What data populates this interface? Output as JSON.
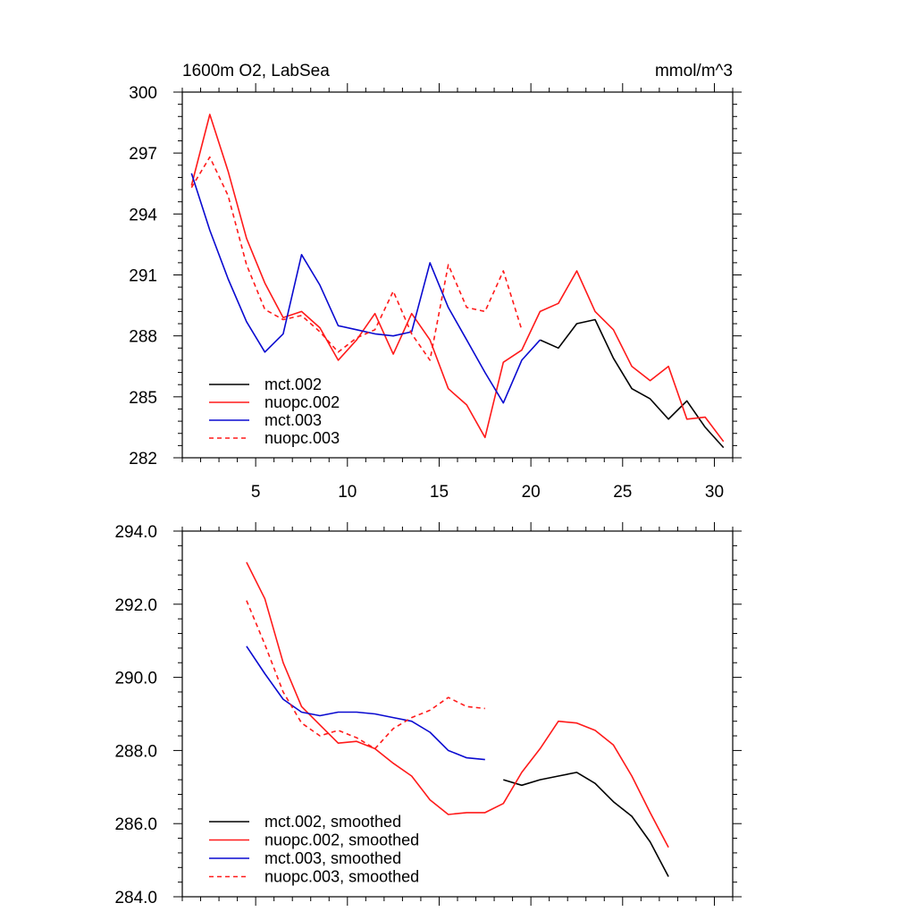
{
  "colors": {
    "black": "#000000",
    "red": "#ff1a1a",
    "blue": "#0a0ad0"
  },
  "chart_data": [
    {
      "type": "line",
      "title": "1600m O2, LabSea",
      "units": "mmol/m^3",
      "xlim": [
        1,
        31
      ],
      "ylim": [
        282,
        300
      ],
      "xticks": [
        5,
        10,
        15,
        20,
        25,
        30
      ],
      "yticks": [
        282,
        285,
        288,
        291,
        294,
        297,
        300
      ],
      "ytick_labels": [
        "282",
        "285",
        "288",
        "291",
        "294",
        "297",
        "300"
      ],
      "show_x_labels": true,
      "legend": "bottom-left",
      "series": [
        {
          "name": "mct.002",
          "color": "#000000",
          "dash": false,
          "x": [
            20.5,
            21.5,
            22.5,
            23.5,
            24.5,
            25.5,
            26.5,
            27.5,
            28.5,
            29.5,
            30.5
          ],
          "y": [
            287.8,
            287.4,
            288.6,
            288.8,
            286.9,
            285.4,
            284.9,
            283.9,
            284.8,
            283.5,
            282.5
          ]
        },
        {
          "name": "nuopc.002",
          "color": "#ff1a1a",
          "dash": false,
          "x": [
            1.5,
            2.5,
            3.5,
            4.5,
            5.5,
            6.5,
            7.5,
            8.5,
            9.5,
            10.5,
            11.5,
            12.5,
            13.5,
            14.5,
            15.5,
            16.5,
            17.5,
            18.5,
            19.5,
            20.5,
            21.5,
            22.5,
            23.5,
            24.5,
            25.5,
            26.5,
            27.5,
            28.5,
            29.5,
            30.5
          ],
          "y": [
            295.4,
            298.9,
            296.1,
            292.8,
            290.6,
            288.9,
            289.2,
            288.4,
            286.8,
            287.8,
            289.1,
            287.1,
            289.1,
            287.8,
            285.4,
            284.6,
            283.0,
            286.7,
            287.3,
            289.2,
            289.6,
            291.2,
            289.2,
            288.3,
            286.5,
            285.8,
            286.5,
            283.9,
            284.0,
            282.8
          ]
        },
        {
          "name": "mct.003",
          "color": "#0a0ad0",
          "dash": false,
          "x": [
            1.5,
            2.5,
            3.5,
            4.5,
            5.5,
            6.5,
            7.5,
            8.5,
            9.5,
            10.5,
            11.5,
            12.5,
            13.5,
            14.5,
            15.5,
            16.5,
            17.5,
            18.5,
            19.5,
            20.5
          ],
          "y": [
            296.0,
            293.2,
            290.8,
            288.7,
            287.2,
            288.1,
            292.0,
            290.5,
            288.5,
            288.3,
            288.1,
            288.0,
            288.2,
            291.6,
            289.4,
            287.8,
            286.2,
            284.7,
            286.8,
            287.8
          ]
        },
        {
          "name": "nuopc.003",
          "color": "#ff1a1a",
          "dash": true,
          "x": [
            1.5,
            2.5,
            3.5,
            4.5,
            5.5,
            6.5,
            7.5,
            8.5,
            9.5,
            10.5,
            11.5,
            12.5,
            13.5,
            14.5,
            15.5,
            16.5,
            17.5,
            18.5,
            19.5
          ],
          "y": [
            295.3,
            296.8,
            294.9,
            291.5,
            289.3,
            288.8,
            289.0,
            288.2,
            287.2,
            287.9,
            288.3,
            290.2,
            288.1,
            286.8,
            291.5,
            289.4,
            289.2,
            291.2,
            288.3
          ]
        }
      ]
    },
    {
      "type": "line",
      "xlim": [
        1,
        31
      ],
      "ylim": [
        284.0,
        294.0
      ],
      "xticks": [
        5,
        10,
        15,
        20,
        25,
        30
      ],
      "yticks": [
        284.0,
        286.0,
        288.0,
        290.0,
        292.0,
        294.0
      ],
      "ytick_labels": [
        "284.0",
        "286.0",
        "288.0",
        "290.0",
        "292.0",
        "294.0"
      ],
      "show_x_labels": false,
      "legend": "bottom-left",
      "series": [
        {
          "name": "mct.002, smoothed",
          "color": "#000000",
          "dash": false,
          "x": [
            18.5,
            19.5,
            20.5,
            21.5,
            22.5,
            23.5,
            24.5,
            25.5,
            26.5,
            27.5
          ],
          "y": [
            287.2,
            287.05,
            287.2,
            287.3,
            287.4,
            287.1,
            286.6,
            286.2,
            285.5,
            284.55
          ]
        },
        {
          "name": "nuopc.002, smoothed",
          "color": "#ff1a1a",
          "dash": false,
          "x": [
            4.5,
            5.5,
            6.5,
            7.5,
            8.5,
            9.5,
            10.5,
            11.5,
            12.5,
            13.5,
            14.5,
            15.5,
            16.5,
            17.5,
            18.5,
            19.5,
            20.5,
            21.5,
            22.5,
            23.5,
            24.5,
            25.5,
            26.5,
            27.5
          ],
          "y": [
            293.15,
            292.15,
            290.4,
            289.2,
            288.7,
            288.2,
            288.25,
            288.05,
            287.65,
            287.3,
            286.65,
            286.25,
            286.3,
            286.3,
            286.55,
            287.4,
            288.05,
            288.8,
            288.75,
            288.55,
            288.15,
            287.3,
            286.3,
            285.35
          ]
        },
        {
          "name": "mct.003, smoothed",
          "color": "#0a0ad0",
          "dash": false,
          "x": [
            4.5,
            5.5,
            6.5,
            7.5,
            8.5,
            9.5,
            10.5,
            11.5,
            12.5,
            13.5,
            14.5,
            15.5,
            16.5,
            17.5
          ],
          "y": [
            290.85,
            290.1,
            289.4,
            289.05,
            288.95,
            289.05,
            289.05,
            289.0,
            288.9,
            288.8,
            288.5,
            288.0,
            287.8,
            287.75
          ]
        },
        {
          "name": "nuopc.003, smoothed",
          "color": "#ff1a1a",
          "dash": true,
          "x": [
            4.5,
            5.5,
            6.5,
            7.5,
            8.5,
            9.5,
            10.5,
            11.5,
            12.5,
            13.5,
            14.5,
            15.5,
            16.5,
            17.5
          ],
          "y": [
            292.1,
            290.9,
            289.6,
            288.75,
            288.4,
            288.55,
            288.35,
            288.05,
            288.6,
            288.9,
            289.1,
            289.45,
            289.2,
            289.15
          ]
        }
      ]
    }
  ]
}
